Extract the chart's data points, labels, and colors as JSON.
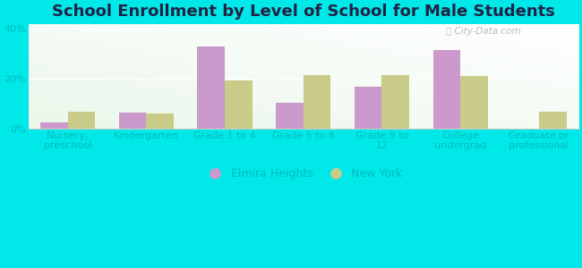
{
  "title": "School Enrollment by Level of School for Male Students",
  "categories": [
    "Nursery,\npreschool",
    "Kindergarten",
    "Grade 1 to 4",
    "Grade 5 to 8",
    "Grade 9 to\n12",
    "College\nundergrad",
    "Graduate or\nprofessional"
  ],
  "elmira_values": [
    2.5,
    6.5,
    33.0,
    10.5,
    17.0,
    31.5,
    0.0
  ],
  "newyork_values": [
    7.0,
    6.0,
    19.5,
    21.5,
    21.5,
    21.0,
    7.0
  ],
  "elmira_color": "#cc99cc",
  "newyork_color": "#c8cc88",
  "ylim": [
    0,
    42
  ],
  "yticks": [
    0,
    20,
    40
  ],
  "ytick_labels": [
    "0%",
    "20%",
    "40%"
  ],
  "background_color": "#00e8e8",
  "bar_width": 0.35,
  "legend_labels": [
    "Elmira Heights",
    "New York"
  ],
  "title_fontsize": 13,
  "tick_fontsize": 8,
  "title_color": "#222244",
  "tick_color": "#00bbbb",
  "legend_text_color": "#00bbbb"
}
